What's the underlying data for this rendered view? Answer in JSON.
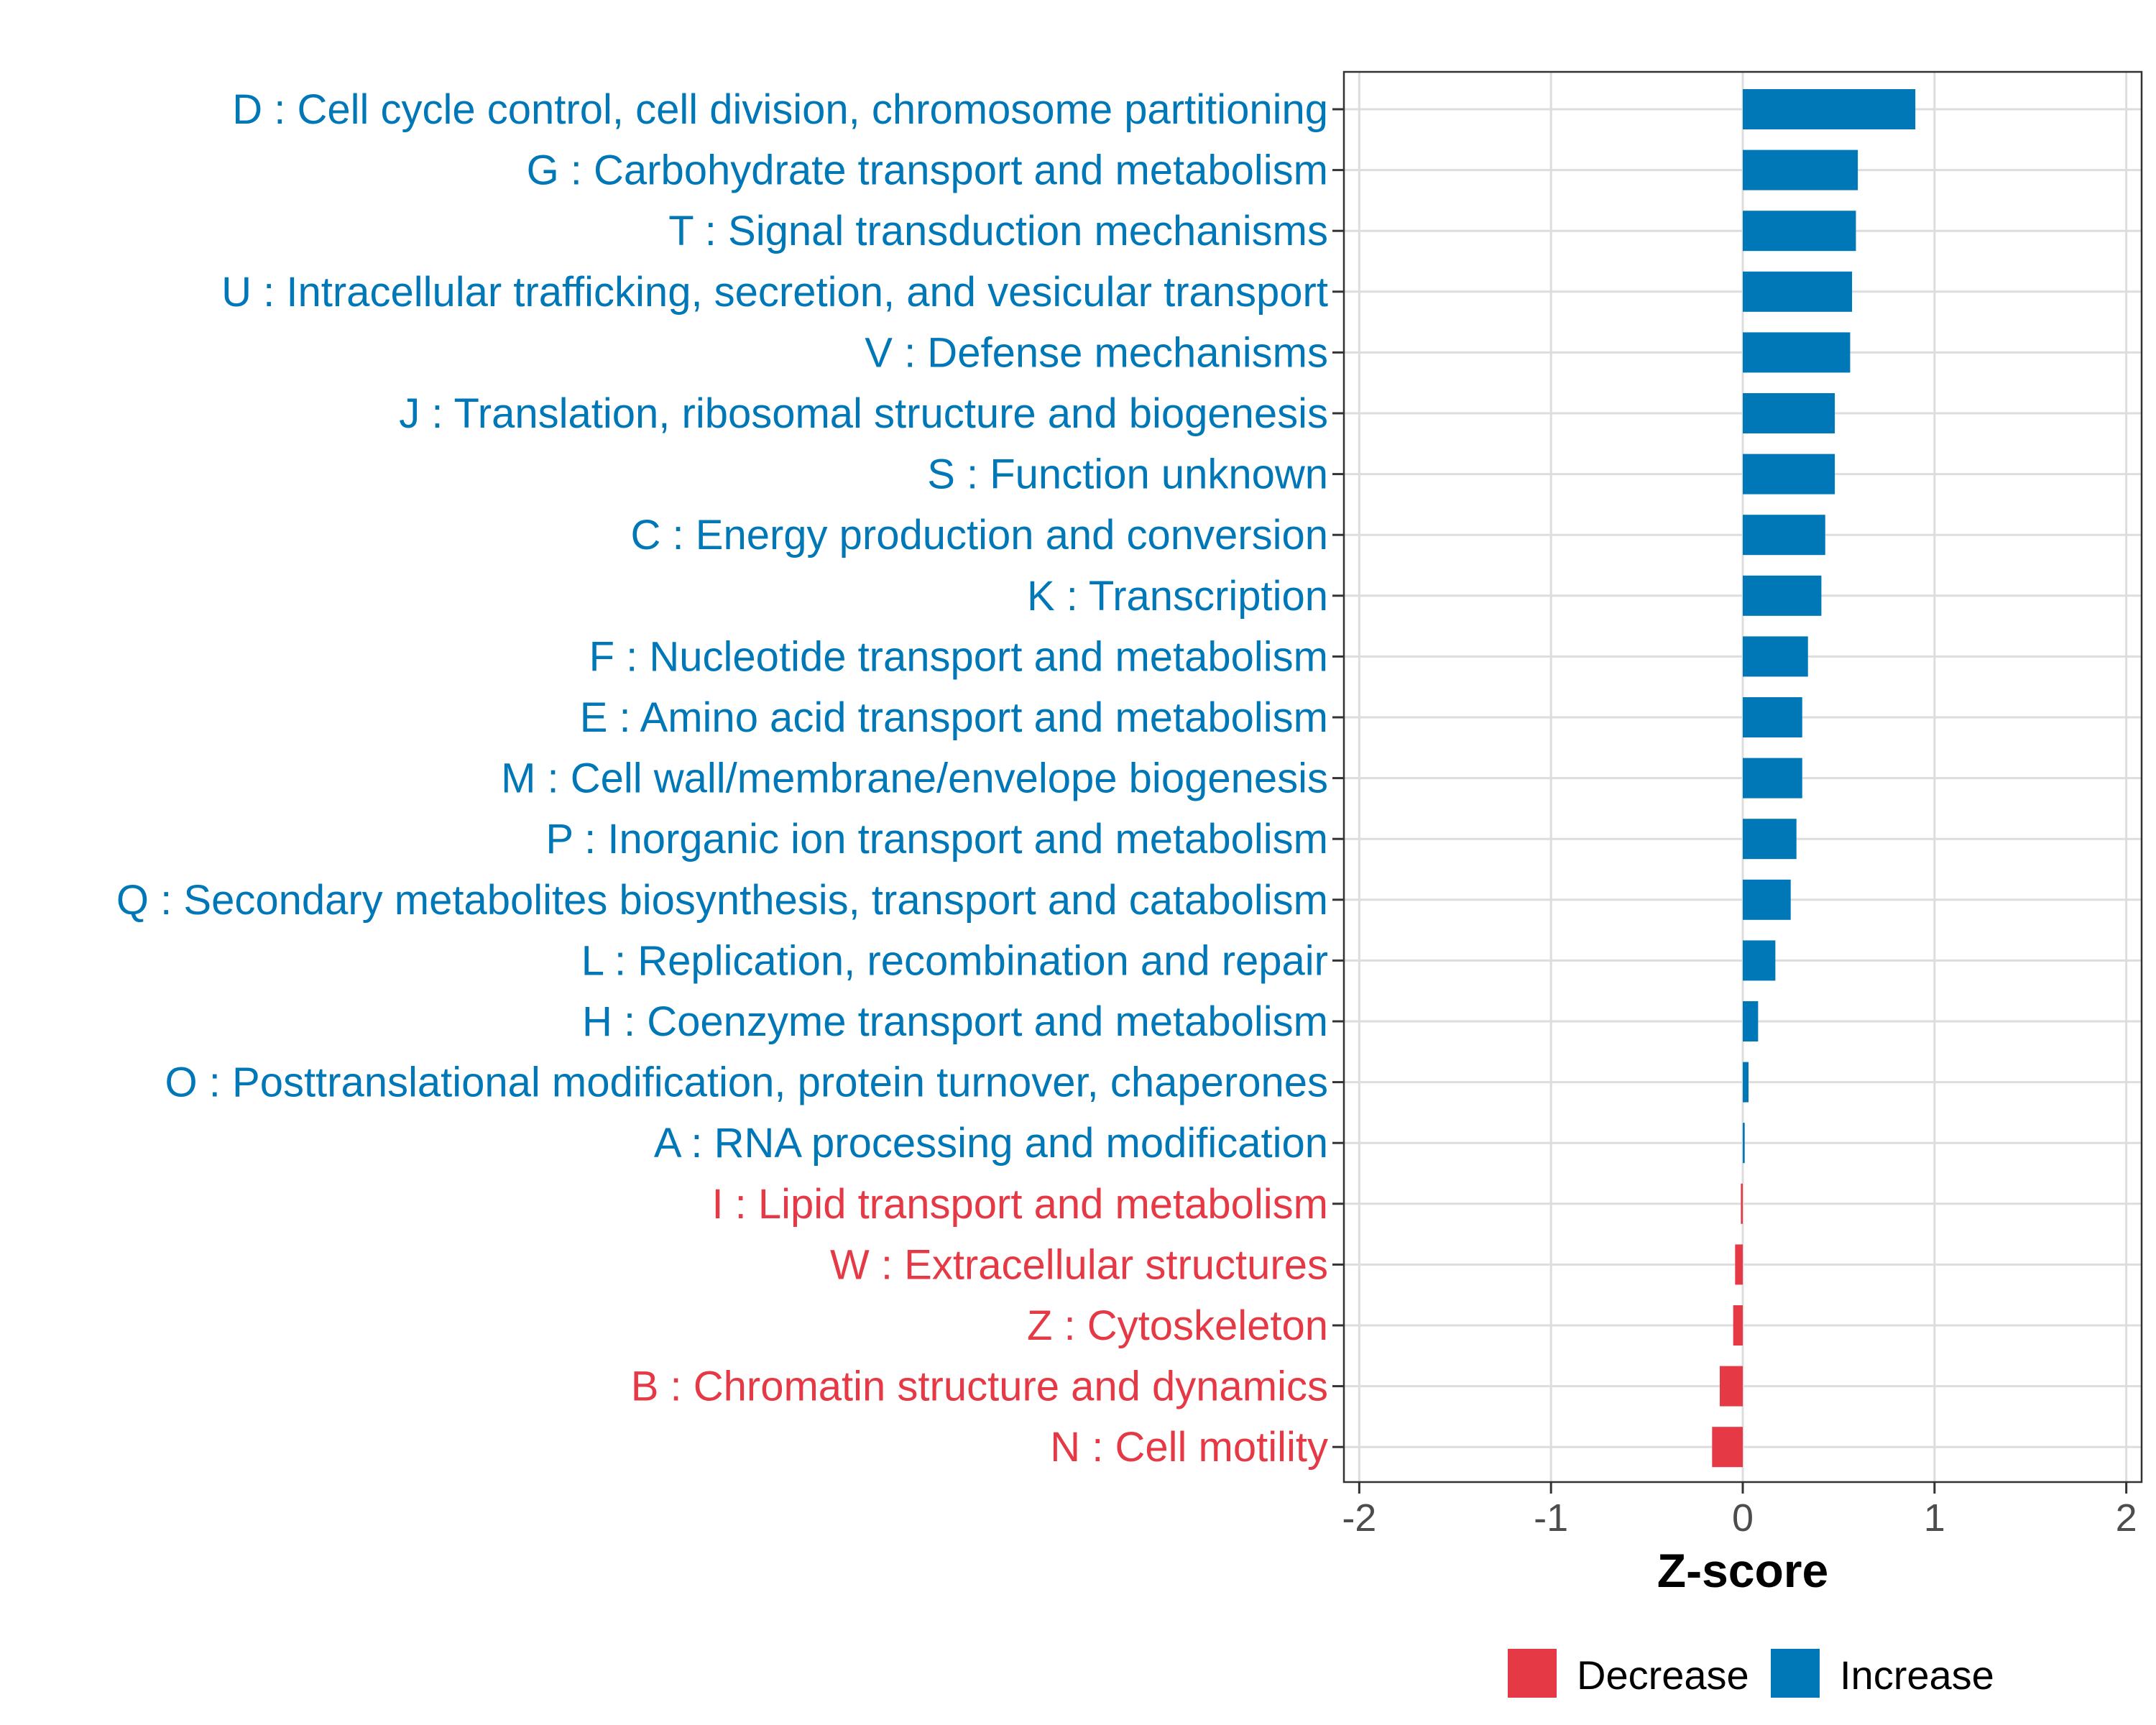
{
  "chart_data": {
    "type": "bar",
    "orientation": "horizontal",
    "xlabel": "Z-score",
    "xlim": [
      -2.08,
      2.08
    ],
    "xticks": [
      -2,
      -1,
      0,
      1,
      2
    ],
    "xtick_labels": [
      "-2",
      "-1",
      "0",
      "1",
      "2"
    ],
    "grid": true,
    "legend_position": "bottom",
    "legend": [
      {
        "key": "decrease",
        "label": "Decrease",
        "color": "#e63946"
      },
      {
        "key": "increase",
        "label": "Increase",
        "color": "#0077b6"
      }
    ],
    "categories": [
      {
        "label": "D : Cell cycle control, cell division, chromosome partitioning",
        "value": 0.9,
        "direction": "increase"
      },
      {
        "label": "G : Carbohydrate transport and metabolism",
        "value": 0.6,
        "direction": "increase"
      },
      {
        "label": "T : Signal transduction mechanisms",
        "value": 0.59,
        "direction": "increase"
      },
      {
        "label": "U : Intracellular trafficking, secretion, and vesicular transport",
        "value": 0.57,
        "direction": "increase"
      },
      {
        "label": "V : Defense mechanisms",
        "value": 0.56,
        "direction": "increase"
      },
      {
        "label": "J : Translation, ribosomal structure and biogenesis",
        "value": 0.48,
        "direction": "increase"
      },
      {
        "label": "S : Function unknown",
        "value": 0.48,
        "direction": "increase"
      },
      {
        "label": "C : Energy production and conversion",
        "value": 0.43,
        "direction": "increase"
      },
      {
        "label": "K : Transcription",
        "value": 0.41,
        "direction": "increase"
      },
      {
        "label": "F : Nucleotide transport and metabolism",
        "value": 0.34,
        "direction": "increase"
      },
      {
        "label": "E : Amino acid transport and metabolism",
        "value": 0.31,
        "direction": "increase"
      },
      {
        "label": "M : Cell wall/membrane/envelope biogenesis",
        "value": 0.31,
        "direction": "increase"
      },
      {
        "label": "P : Inorganic ion transport and metabolism",
        "value": 0.28,
        "direction": "increase"
      },
      {
        "label": "Q : Secondary metabolites biosynthesis, transport and catabolism",
        "value": 0.25,
        "direction": "increase"
      },
      {
        "label": "L : Replication, recombination and repair",
        "value": 0.17,
        "direction": "increase"
      },
      {
        "label": "H : Coenzyme transport and metabolism",
        "value": 0.08,
        "direction": "increase"
      },
      {
        "label": "O : Posttranslational modification, protein turnover, chaperones",
        "value": 0.03,
        "direction": "increase"
      },
      {
        "label": "A : RNA processing and modification",
        "value": 0.01,
        "direction": "increase"
      },
      {
        "label": "I : Lipid transport and metabolism",
        "value": -0.01,
        "direction": "decrease"
      },
      {
        "label": "W : Extracellular structures",
        "value": -0.04,
        "direction": "decrease"
      },
      {
        "label": "Z : Cytoskeleton",
        "value": -0.05,
        "direction": "decrease"
      },
      {
        "label": "B : Chromatin structure and dynamics",
        "value": -0.12,
        "direction": "decrease"
      },
      {
        "label": "N : Cell motility",
        "value": -0.16,
        "direction": "decrease"
      }
    ]
  }
}
